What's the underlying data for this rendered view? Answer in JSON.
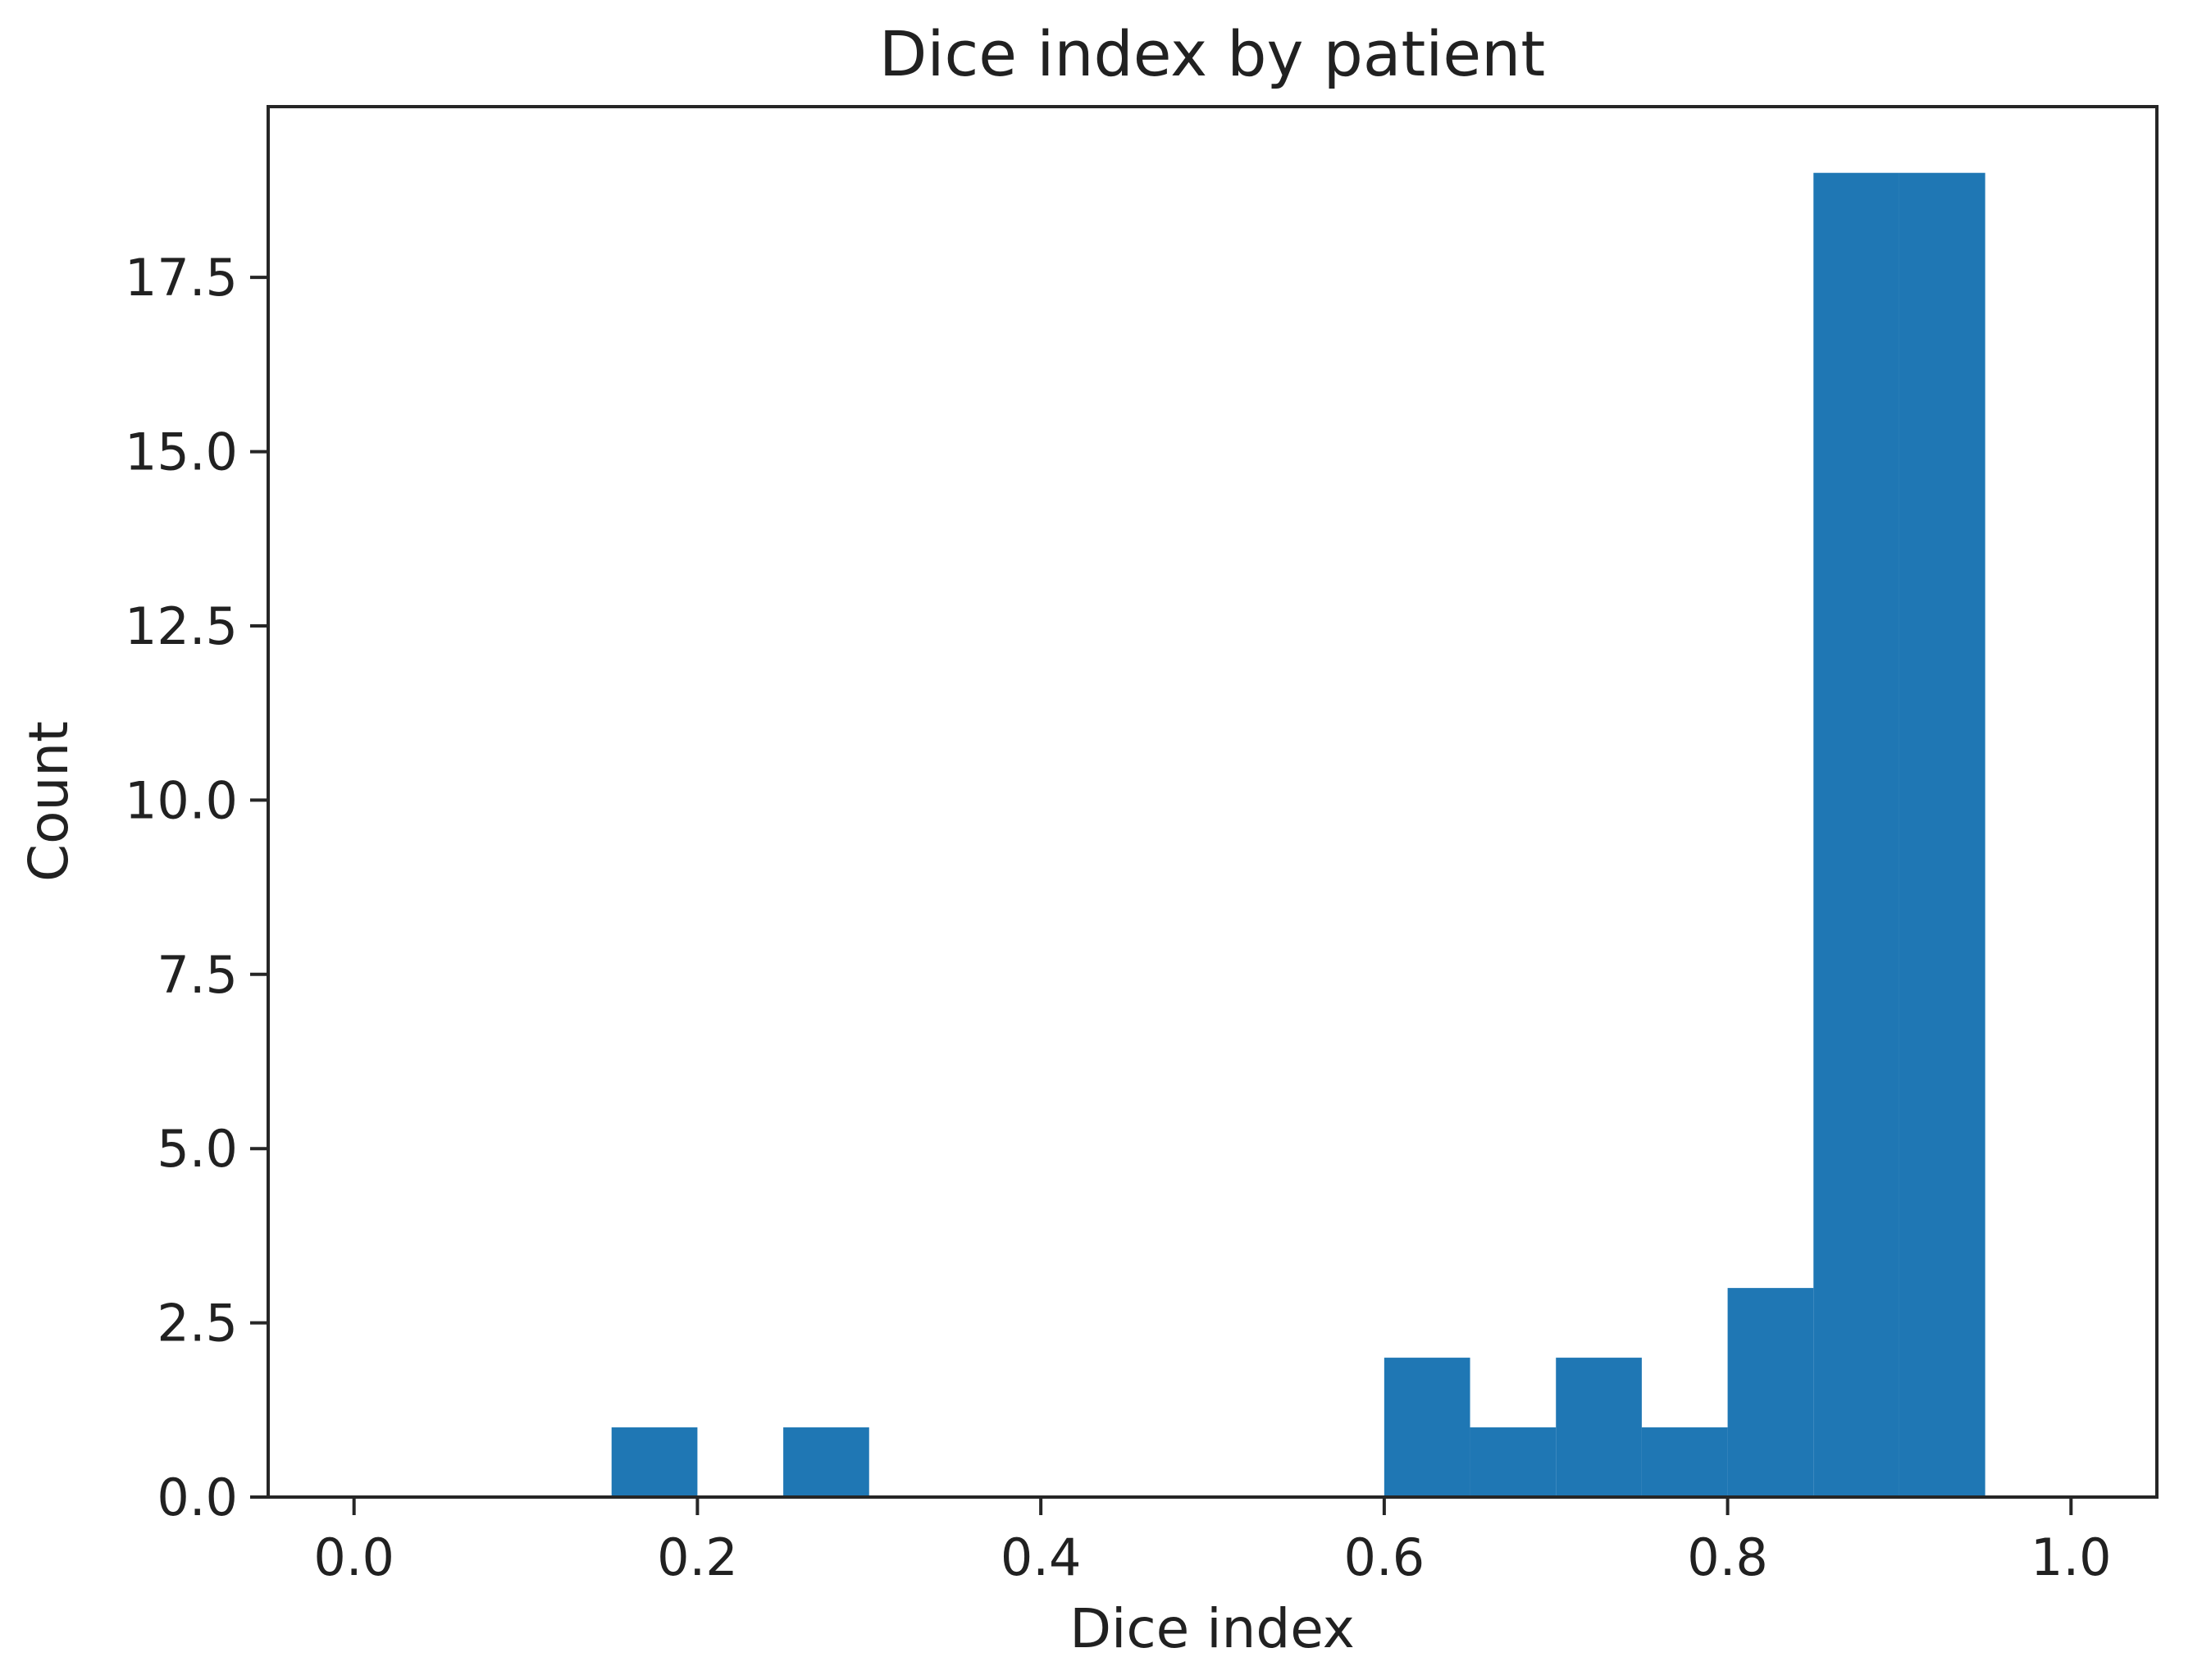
{
  "figure": {
    "background": "#ffffff",
    "text_color": "#212121",
    "spine_color": "#262626"
  },
  "chart_data": {
    "type": "bar",
    "subtype": "histogram",
    "title": "Dice index by patient",
    "xlabel": "Dice index",
    "ylabel": "Count",
    "bar_color": "#1f77b4",
    "grid": false,
    "legend": null,
    "xlim": [
      -0.05,
      1.05
    ],
    "ylim": [
      0,
      19.95
    ],
    "bin_width": 0.05,
    "bins": [
      {
        "x0": 0.15,
        "x1": 0.2,
        "count": 1
      },
      {
        "x0": 0.25,
        "x1": 0.3,
        "count": 1
      },
      {
        "x0": 0.6,
        "x1": 0.65,
        "count": 2
      },
      {
        "x0": 0.65,
        "x1": 0.7,
        "count": 1
      },
      {
        "x0": 0.7,
        "x1": 0.75,
        "count": 2
      },
      {
        "x0": 0.75,
        "x1": 0.8,
        "count": 1
      },
      {
        "x0": 0.8,
        "x1": 0.85,
        "count": 3
      },
      {
        "x0": 0.85,
        "x1": 0.9,
        "count": 19
      },
      {
        "x0": 0.9,
        "x1": 0.95,
        "count": 19
      }
    ],
    "x_ticks": [
      {
        "value": 0.0,
        "label": "0.0"
      },
      {
        "value": 0.2,
        "label": "0.2"
      },
      {
        "value": 0.4,
        "label": "0.4"
      },
      {
        "value": 0.6,
        "label": "0.6"
      },
      {
        "value": 0.8,
        "label": "0.8"
      },
      {
        "value": 1.0,
        "label": "1.0"
      }
    ],
    "y_ticks": [
      {
        "value": 0.0,
        "label": "0.0"
      },
      {
        "value": 2.5,
        "label": "2.5"
      },
      {
        "value": 5.0,
        "label": "5.0"
      },
      {
        "value": 7.5,
        "label": "7.5"
      },
      {
        "value": 10.0,
        "label": "10.0"
      },
      {
        "value": 12.5,
        "label": "12.5"
      },
      {
        "value": 15.0,
        "label": "15.0"
      },
      {
        "value": 17.5,
        "label": "17.5"
      }
    ]
  }
}
